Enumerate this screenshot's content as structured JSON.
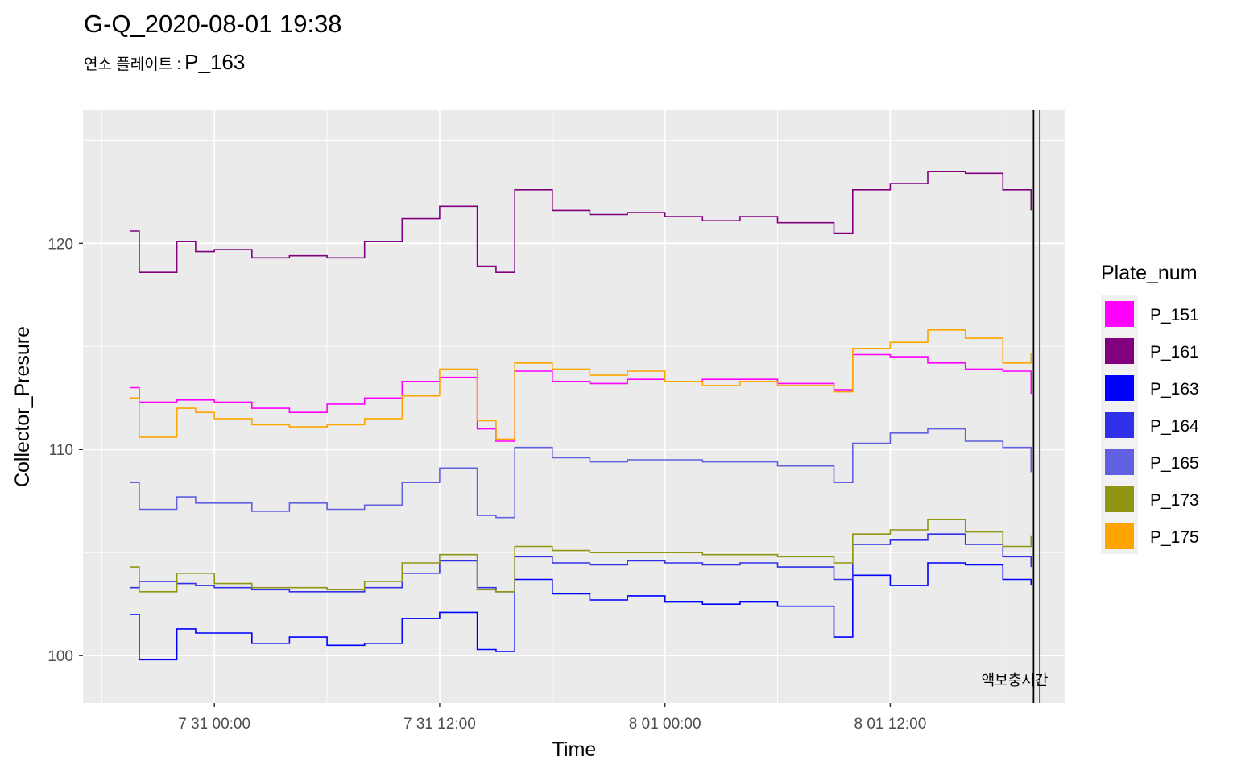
{
  "chart_data": {
    "type": "line",
    "title": "G-Q_2020-08-01 19:38",
    "subtitle_label": "연소 플레이트 :",
    "subtitle_value": "P_163",
    "xlabel": "Time",
    "ylabel": "Collector_Presure",
    "x_ticks": [
      "7 31 00:00",
      "7 31 12:00",
      "8 01 00:00",
      "8 01 12:00"
    ],
    "y_ticks": [
      100,
      110,
      120
    ],
    "xlim": [
      "2020-07-30 17:00",
      "2020-08-01 21:20"
    ],
    "ylim": [
      97.7,
      126.5
    ],
    "grid": true,
    "legend_title": "Plate_num",
    "legend_position": "right",
    "annotation": "액보충시간",
    "vlines": [
      {
        "x": "2020-08-01 19:38",
        "color": "#000000"
      },
      {
        "x": "2020-08-01 19:58",
        "color": "#cc0000"
      }
    ],
    "series": [
      {
        "name": "P_151",
        "color": "#FF00FF",
        "x": [
          "2020-07-30 19:30",
          "2020-07-30 20:00",
          "2020-07-30 22:00",
          "2020-07-30 23:00",
          "2020-07-31 00:00",
          "2020-07-31 02:00",
          "2020-07-31 04:00",
          "2020-07-31 06:00",
          "2020-07-31 08:00",
          "2020-07-31 10:00",
          "2020-07-31 12:00",
          "2020-07-31 14:00",
          "2020-07-31 15:00",
          "2020-07-31 16:00",
          "2020-07-31 18:00",
          "2020-07-31 20:00",
          "2020-07-31 22:00",
          "2020-08-01 00:00",
          "2020-08-01 02:00",
          "2020-08-01 04:00",
          "2020-08-01 06:00",
          "2020-08-01 09:00",
          "2020-08-01 10:00",
          "2020-08-01 12:00",
          "2020-08-01 14:00",
          "2020-08-01 16:00",
          "2020-08-01 18:00",
          "2020-08-01 19:30"
        ],
        "values": [
          113,
          112.3,
          112.4,
          112.4,
          112.3,
          112,
          111.8,
          112.2,
          112.5,
          113.3,
          113.5,
          111,
          110.4,
          113.8,
          113.3,
          113.2,
          113.4,
          113.3,
          113.4,
          113.4,
          113.2,
          112.9,
          114.6,
          114.5,
          114.2,
          113.9,
          113.8,
          112.7
        ]
      },
      {
        "name": "P_161",
        "color": "#800080",
        "x": [
          "2020-07-30 19:30",
          "2020-07-30 20:00",
          "2020-07-30 22:00",
          "2020-07-30 23:00",
          "2020-07-31 00:00",
          "2020-07-31 02:00",
          "2020-07-31 04:00",
          "2020-07-31 06:00",
          "2020-07-31 08:00",
          "2020-07-31 10:00",
          "2020-07-31 12:00",
          "2020-07-31 14:00",
          "2020-07-31 15:00",
          "2020-07-31 16:00",
          "2020-07-31 18:00",
          "2020-07-31 20:00",
          "2020-07-31 22:00",
          "2020-08-01 00:00",
          "2020-08-01 02:00",
          "2020-08-01 04:00",
          "2020-08-01 06:00",
          "2020-08-01 09:00",
          "2020-08-01 10:00",
          "2020-08-01 12:00",
          "2020-08-01 14:00",
          "2020-08-01 16:00",
          "2020-08-01 18:00",
          "2020-08-01 19:30"
        ],
        "values": [
          120.6,
          118.6,
          120.1,
          119.6,
          119.7,
          119.3,
          119.4,
          119.3,
          120.1,
          121.2,
          121.8,
          118.9,
          118.6,
          122.6,
          121.6,
          121.4,
          121.5,
          121.3,
          121.1,
          121.3,
          121.0,
          120.5,
          122.6,
          122.9,
          123.5,
          123.4,
          122.6,
          121.6
        ]
      },
      {
        "name": "P_163",
        "color": "#0000FF",
        "x": [
          "2020-07-30 19:30",
          "2020-07-30 20:00",
          "2020-07-30 22:00",
          "2020-07-30 23:00",
          "2020-07-31 00:00",
          "2020-07-31 02:00",
          "2020-07-31 04:00",
          "2020-07-31 06:00",
          "2020-07-31 08:00",
          "2020-07-31 10:00",
          "2020-07-31 12:00",
          "2020-07-31 14:00",
          "2020-07-31 15:00",
          "2020-07-31 16:00",
          "2020-07-31 18:00",
          "2020-07-31 20:00",
          "2020-07-31 22:00",
          "2020-08-01 00:00",
          "2020-08-01 02:00",
          "2020-08-01 04:00",
          "2020-08-01 06:00",
          "2020-08-01 09:00",
          "2020-08-01 10:00",
          "2020-08-01 12:00",
          "2020-08-01 14:00",
          "2020-08-01 16:00",
          "2020-08-01 18:00",
          "2020-08-01 19:30"
        ],
        "values": [
          102,
          99.8,
          101.3,
          101.1,
          101.1,
          100.6,
          100.9,
          100.5,
          100.6,
          101.8,
          102.1,
          100.3,
          100.2,
          103.7,
          103,
          102.7,
          102.9,
          102.6,
          102.5,
          102.6,
          102.4,
          100.9,
          103.9,
          103.4,
          104.5,
          104.4,
          103.7,
          103.4
        ]
      },
      {
        "name": "P_164",
        "color": "#3030E8",
        "x": [
          "2020-07-30 19:30",
          "2020-07-30 20:00",
          "2020-07-30 22:00",
          "2020-07-30 23:00",
          "2020-07-31 00:00",
          "2020-07-31 02:00",
          "2020-07-31 04:00",
          "2020-07-31 06:00",
          "2020-07-31 08:00",
          "2020-07-31 10:00",
          "2020-07-31 12:00",
          "2020-07-31 14:00",
          "2020-07-31 15:00",
          "2020-07-31 16:00",
          "2020-07-31 18:00",
          "2020-07-31 20:00",
          "2020-07-31 22:00",
          "2020-08-01 00:00",
          "2020-08-01 02:00",
          "2020-08-01 04:00",
          "2020-08-01 06:00",
          "2020-08-01 09:00",
          "2020-08-01 10:00",
          "2020-08-01 12:00",
          "2020-08-01 14:00",
          "2020-08-01 16:00",
          "2020-08-01 18:00",
          "2020-08-01 19:30"
        ],
        "values": [
          103.3,
          103.6,
          103.5,
          103.4,
          103.3,
          103.2,
          103.1,
          103.1,
          103.3,
          104.0,
          104.6,
          103.3,
          103.1,
          104.8,
          104.5,
          104.4,
          104.6,
          104.5,
          104.4,
          104.5,
          104.3,
          103.7,
          105.4,
          105.6,
          105.9,
          105.4,
          104.8,
          104.3
        ]
      },
      {
        "name": "P_165",
        "color": "#6060E0",
        "x": [
          "2020-07-30 19:30",
          "2020-07-30 20:00",
          "2020-07-30 22:00",
          "2020-07-30 23:00",
          "2020-07-31 00:00",
          "2020-07-31 02:00",
          "2020-07-31 04:00",
          "2020-07-31 06:00",
          "2020-07-31 08:00",
          "2020-07-31 10:00",
          "2020-07-31 12:00",
          "2020-07-31 14:00",
          "2020-07-31 15:00",
          "2020-07-31 16:00",
          "2020-07-31 18:00",
          "2020-07-31 20:00",
          "2020-07-31 22:00",
          "2020-08-01 00:00",
          "2020-08-01 02:00",
          "2020-08-01 04:00",
          "2020-08-01 06:00",
          "2020-08-01 09:00",
          "2020-08-01 10:00",
          "2020-08-01 12:00",
          "2020-08-01 14:00",
          "2020-08-01 16:00",
          "2020-08-01 18:00",
          "2020-08-01 19:30"
        ],
        "values": [
          108.4,
          107.1,
          107.7,
          107.4,
          107.4,
          107.0,
          107.4,
          107.1,
          107.3,
          108.4,
          109.1,
          106.8,
          106.7,
          110.1,
          109.6,
          109.4,
          109.5,
          109.5,
          109.4,
          109.4,
          109.2,
          108.4,
          110.3,
          110.8,
          111.0,
          110.4,
          110.1,
          108.9
        ]
      },
      {
        "name": "P_173",
        "color": "#8F9613",
        "x": [
          "2020-07-30 19:30",
          "2020-07-30 20:00",
          "2020-07-30 22:00",
          "2020-07-30 23:00",
          "2020-07-31 00:00",
          "2020-07-31 02:00",
          "2020-07-31 04:00",
          "2020-07-31 06:00",
          "2020-07-31 08:00",
          "2020-07-31 10:00",
          "2020-07-31 12:00",
          "2020-07-31 14:00",
          "2020-07-31 15:00",
          "2020-07-31 16:00",
          "2020-07-31 18:00",
          "2020-07-31 20:00",
          "2020-07-31 22:00",
          "2020-08-01 00:00",
          "2020-08-01 02:00",
          "2020-08-01 04:00",
          "2020-08-01 06:00",
          "2020-08-01 09:00",
          "2020-08-01 10:00",
          "2020-08-01 12:00",
          "2020-08-01 14:00",
          "2020-08-01 16:00",
          "2020-08-01 18:00",
          "2020-08-01 19:30"
        ],
        "values": [
          104.3,
          103.1,
          104,
          104.0,
          103.5,
          103.3,
          103.3,
          103.2,
          103.6,
          104.5,
          104.9,
          103.2,
          103.1,
          105.3,
          105.1,
          105.0,
          105.0,
          105.0,
          104.9,
          104.9,
          104.8,
          104.5,
          105.9,
          106.1,
          106.6,
          106.0,
          105.3,
          105.8
        ]
      },
      {
        "name": "P_175",
        "color": "#FFA500",
        "x": [
          "2020-07-30 19:30",
          "2020-07-30 20:00",
          "2020-07-30 22:00",
          "2020-07-30 23:00",
          "2020-07-31 00:00",
          "2020-07-31 02:00",
          "2020-07-31 04:00",
          "2020-07-31 06:00",
          "2020-07-31 08:00",
          "2020-07-31 10:00",
          "2020-07-31 12:00",
          "2020-07-31 14:00",
          "2020-07-31 15:00",
          "2020-07-31 16:00",
          "2020-07-31 18:00",
          "2020-07-31 20:00",
          "2020-07-31 22:00",
          "2020-08-01 00:00",
          "2020-08-01 02:00",
          "2020-08-01 04:00",
          "2020-08-01 06:00",
          "2020-08-01 09:00",
          "2020-08-01 10:00",
          "2020-08-01 12:00",
          "2020-08-01 14:00",
          "2020-08-01 16:00",
          "2020-08-01 18:00",
          "2020-08-01 19:30"
        ],
        "values": [
          112.5,
          110.6,
          112.0,
          111.8,
          111.5,
          111.2,
          111.1,
          111.2,
          111.5,
          112.6,
          113.9,
          111.4,
          110.5,
          114.2,
          113.9,
          113.6,
          113.8,
          113.3,
          113.1,
          113.3,
          113.1,
          112.8,
          114.9,
          115.2,
          115.8,
          115.4,
          114.2,
          114.7
        ]
      }
    ]
  }
}
